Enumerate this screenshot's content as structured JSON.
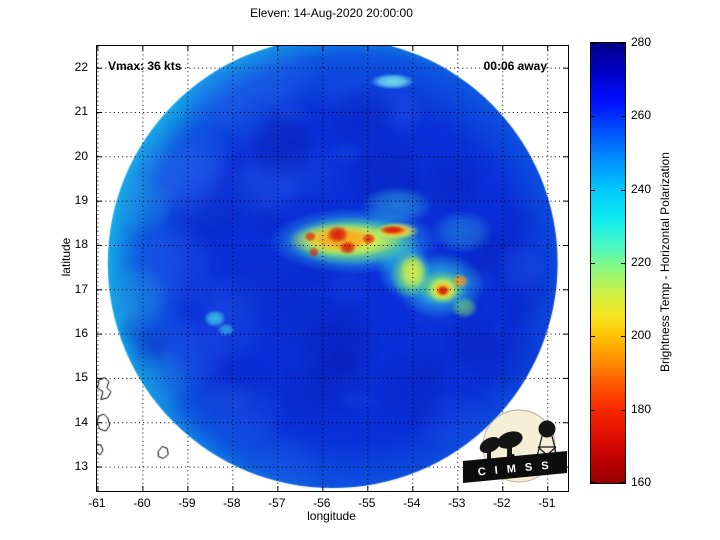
{
  "title": "Eleven: 14-Aug-2020 20:00:00",
  "annotations": {
    "vmax": "Vmax: 36 kts",
    "eta": "00:06 away"
  },
  "logo": {
    "text": "C I M S S"
  },
  "chart_data": {
    "type": "heatmap",
    "title": "Eleven: 14-Aug-2020 20:00:00",
    "xlabel": "longitude",
    "ylabel": "latitude",
    "xlim": [
      -61.02,
      -50.55
    ],
    "ylim": [
      12.46,
      22.5
    ],
    "x_ticks": [
      -61,
      -60,
      -59,
      -58,
      -57,
      -56,
      -55,
      -54,
      -53,
      -52,
      -51
    ],
    "y_ticks": [
      13,
      14,
      15,
      16,
      17,
      18,
      19,
      20,
      21,
      22
    ],
    "grid": "dotted",
    "colorbar": {
      "label": "Brightness Temp - Horizontal Polarization",
      "min": 160,
      "max": 280,
      "ticks": [
        280,
        260,
        240,
        220,
        200,
        180,
        160
      ],
      "stops": [
        {
          "v": 280,
          "c": "#000088"
        },
        {
          "v": 272,
          "c": "#0000c8"
        },
        {
          "v": 264,
          "c": "#0010ff"
        },
        {
          "v": 256,
          "c": "#0050ff"
        },
        {
          "v": 248,
          "c": "#0090ff"
        },
        {
          "v": 240,
          "c": "#00c8ff"
        },
        {
          "v": 232,
          "c": "#10ecf0"
        },
        {
          "v": 224,
          "c": "#50f8c0"
        },
        {
          "v": 218,
          "c": "#90f878"
        },
        {
          "v": 212,
          "c": "#ccf048"
        },
        {
          "v": 206,
          "c": "#f4e820"
        },
        {
          "v": 200,
          "c": "#ffc000"
        },
        {
          "v": 193,
          "c": "#ff8c00"
        },
        {
          "v": 186,
          "c": "#ff5000"
        },
        {
          "v": 180,
          "c": "#f82800"
        },
        {
          "v": 172,
          "c": "#dc0c00"
        },
        {
          "v": 166,
          "c": "#bc0000"
        },
        {
          "v": 160,
          "c": "#960000"
        }
      ]
    },
    "swath": {
      "center_lon": -55.78,
      "center_lat": 17.6,
      "radius_deg": 5.0,
      "base_color": "#0a2fd8",
      "rim_color": "#2ec6ec"
    },
    "texture": [
      {
        "lon": -54.6,
        "lat": 19.6,
        "r": 0.9,
        "color": "#0318a8",
        "alpha": 0.3
      },
      {
        "lon": -56.9,
        "lat": 20.2,
        "r": 0.8,
        "color": "#0318a8",
        "alpha": 0.28
      },
      {
        "lon": -53.1,
        "lat": 19.4,
        "r": 0.7,
        "color": "#0318a8",
        "alpha": 0.3
      },
      {
        "lon": -52.2,
        "lat": 17.8,
        "r": 0.8,
        "color": "#0318a8",
        "alpha": 0.3
      },
      {
        "lon": -55.6,
        "lat": 15.7,
        "r": 1.0,
        "color": "#0318a8",
        "alpha": 0.26
      },
      {
        "lon": -57.4,
        "lat": 17.1,
        "r": 0.9,
        "color": "#0a2cc8",
        "alpha": 0.3
      },
      {
        "lon": -56.3,
        "lat": 14.7,
        "r": 0.8,
        "color": "#0318a8",
        "alpha": 0.24
      },
      {
        "lon": -54.0,
        "lat": 14.8,
        "r": 0.9,
        "color": "#0318a8",
        "alpha": 0.26
      },
      {
        "lon": -52.7,
        "lat": 15.8,
        "r": 0.7,
        "color": "#0318a8",
        "alpha": 0.28
      },
      {
        "lon": -58.0,
        "lat": 18.9,
        "r": 0.7,
        "color": "#0a2cc8",
        "alpha": 0.3
      },
      {
        "lon": -55.1,
        "lat": 20.9,
        "r": 0.8,
        "color": "#0318a8",
        "alpha": 0.26
      },
      {
        "lon": -56.6,
        "lat": 16.4,
        "r": 0.7,
        "color": "#0a2cc8",
        "alpha": 0.26
      },
      {
        "lon": -59.3,
        "lat": 17.6,
        "r": 1.0,
        "color": "#2b63f2",
        "alpha": 0.35
      },
      {
        "lon": -59.0,
        "lat": 19.5,
        "r": 0.8,
        "color": "#2b63f2",
        "alpha": 0.3
      },
      {
        "lon": -58.9,
        "lat": 15.6,
        "r": 0.9,
        "color": "#2b63f2",
        "alpha": 0.3
      },
      {
        "lon": -57.6,
        "lat": 14.2,
        "r": 0.8,
        "color": "#2b63f2",
        "alpha": 0.25
      },
      {
        "lon": -60.2,
        "lat": 16.8,
        "r": 0.8,
        "color": "#1fa8e0",
        "alpha": 0.4
      },
      {
        "lon": -60.0,
        "lat": 18.9,
        "r": 0.7,
        "color": "#1fa8e0",
        "alpha": 0.35
      },
      {
        "lon": -59.7,
        "lat": 14.9,
        "r": 0.8,
        "color": "#1fa8e0",
        "alpha": 0.35
      },
      {
        "lon": -58.3,
        "lat": 21.4,
        "r": 0.9,
        "color": "#2b63f2",
        "alpha": 0.3
      },
      {
        "lon": -51.6,
        "lat": 17.5,
        "r": 0.6,
        "color": "#2b63f2",
        "alpha": 0.3
      }
    ],
    "features": [
      {
        "lon": -55.3,
        "lat": 18.1,
        "rx": 1.9,
        "ry": 0.75,
        "color": "#2ec8e8",
        "alpha": 0.8
      },
      {
        "lon": -53.4,
        "lat": 17.1,
        "rx": 1.0,
        "ry": 0.75,
        "color": "#2ec8e8",
        "alpha": 0.75
      },
      {
        "lon": -54.2,
        "lat": 17.5,
        "rx": 0.6,
        "ry": 0.7,
        "color": "#2ec8e8",
        "alpha": 0.6
      },
      {
        "lon": -54.35,
        "lat": 18.9,
        "rx": 0.8,
        "ry": 0.45,
        "color": "#35c0e0",
        "alpha": 0.5
      },
      {
        "lon": -52.9,
        "lat": 18.3,
        "rx": 0.7,
        "ry": 0.5,
        "color": "#30a8e0",
        "alpha": 0.45
      },
      {
        "lon": -58.4,
        "lat": 16.35,
        "rx": 0.25,
        "ry": 0.2,
        "color": "#40d8e8",
        "alpha": 0.8
      },
      {
        "lon": -58.15,
        "lat": 16.1,
        "rx": 0.2,
        "ry": 0.15,
        "color": "#40d8e8",
        "alpha": 0.6
      },
      {
        "lon": -54.45,
        "lat": 21.7,
        "rx": 0.5,
        "ry": 0.18,
        "color": "#7ceef2",
        "alpha": 0.9
      },
      {
        "lon": -55.35,
        "lat": 18.1,
        "rx": 1.5,
        "ry": 0.55,
        "color": "#7de86a",
        "alpha": 0.85
      },
      {
        "lon": -54.05,
        "lat": 17.35,
        "rx": 0.45,
        "ry": 0.55,
        "color": "#7de86a",
        "alpha": 0.8
      },
      {
        "lon": -53.35,
        "lat": 17.05,
        "rx": 0.55,
        "ry": 0.4,
        "color": "#7de86a",
        "alpha": 0.8
      },
      {
        "lon": -52.85,
        "lat": 16.6,
        "rx": 0.3,
        "ry": 0.25,
        "color": "#7de86a",
        "alpha": 0.6
      },
      {
        "lon": -55.5,
        "lat": 18.12,
        "rx": 1.25,
        "ry": 0.4,
        "color": "#f8f83c",
        "alpha": 0.95
      },
      {
        "lon": -54.35,
        "lat": 18.33,
        "rx": 0.5,
        "ry": 0.2,
        "color": "#f8f83c",
        "alpha": 0.9
      },
      {
        "lon": -54.0,
        "lat": 17.4,
        "rx": 0.3,
        "ry": 0.4,
        "color": "#f0f040",
        "alpha": 0.8
      },
      {
        "lon": -53.33,
        "lat": 17.0,
        "rx": 0.35,
        "ry": 0.3,
        "color": "#f8f83c",
        "alpha": 0.9
      },
      {
        "lon": -55.6,
        "lat": 18.15,
        "rx": 0.8,
        "ry": 0.3,
        "color": "#fa9a18",
        "alpha": 0.9
      },
      {
        "lon": -54.4,
        "lat": 18.33,
        "rx": 0.35,
        "ry": 0.14,
        "color": "#fa9a18",
        "alpha": 0.9
      },
      {
        "lon": -52.95,
        "lat": 17.2,
        "rx": 0.2,
        "ry": 0.16,
        "color": "#fa9a18",
        "alpha": 0.85
      },
      {
        "lon": -53.33,
        "lat": 17.0,
        "rx": 0.22,
        "ry": 0.18,
        "color": "#fa9a18",
        "alpha": 0.9
      },
      {
        "lon": -55.67,
        "lat": 18.25,
        "rx": 0.25,
        "ry": 0.2,
        "color": "#d81508",
        "alpha": 0.95
      },
      {
        "lon": -55.45,
        "lat": 17.95,
        "rx": 0.2,
        "ry": 0.16,
        "color": "#d81508",
        "alpha": 0.9
      },
      {
        "lon": -54.98,
        "lat": 18.15,
        "rx": 0.16,
        "ry": 0.13,
        "color": "#e02508",
        "alpha": 0.9
      },
      {
        "lon": -54.45,
        "lat": 18.35,
        "rx": 0.3,
        "ry": 0.1,
        "color": "#d81508",
        "alpha": 0.95
      },
      {
        "lon": -56.28,
        "lat": 18.2,
        "rx": 0.14,
        "ry": 0.12,
        "color": "#e02508",
        "alpha": 0.85
      },
      {
        "lon": -56.2,
        "lat": 17.85,
        "rx": 0.12,
        "ry": 0.12,
        "color": "#e02508",
        "alpha": 0.8
      },
      {
        "lon": -53.33,
        "lat": 16.98,
        "rx": 0.14,
        "ry": 0.12,
        "color": "#d81508",
        "alpha": 0.95
      }
    ],
    "islands": [
      {
        "name": "island",
        "lon": -61.0,
        "lat": 14.95,
        "pts": [
          [
            0,
            0
          ],
          [
            7,
            -3
          ],
          [
            11,
            1
          ],
          [
            9,
            7
          ],
          [
            13,
            11
          ],
          [
            10,
            17
          ],
          [
            3,
            19
          ],
          [
            5,
            11
          ],
          [
            -1,
            7
          ],
          [
            1,
            3
          ]
        ]
      },
      {
        "name": "island",
        "lon": -60.98,
        "lat": 14.15,
        "pts": [
          [
            0,
            0
          ],
          [
            5,
            -2
          ],
          [
            9,
            2
          ],
          [
            11,
            9
          ],
          [
            7,
            15
          ],
          [
            1,
            13
          ],
          [
            -2,
            6
          ]
        ]
      },
      {
        "name": "island",
        "lon": -61.02,
        "lat": 13.52,
        "pts": [
          [
            0,
            0
          ],
          [
            4,
            1
          ],
          [
            6,
            6
          ],
          [
            3,
            11
          ],
          [
            -1,
            7
          ],
          [
            -1,
            3
          ]
        ]
      },
      {
        "name": "island",
        "lon": -59.68,
        "lat": 13.42,
        "pts": [
          [
            1,
            3
          ],
          [
            5,
            -2
          ],
          [
            10,
            0
          ],
          [
            11,
            6
          ],
          [
            6,
            10
          ],
          [
            1,
            8
          ]
        ]
      }
    ]
  }
}
